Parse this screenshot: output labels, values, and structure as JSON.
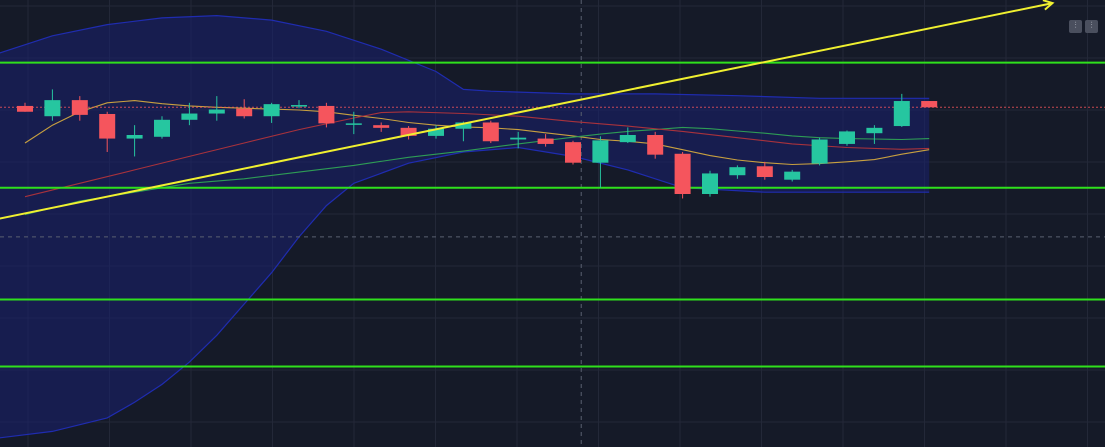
{
  "controls": {
    "btn_a_glyph": "⫶",
    "btn_b_glyph": "⫶"
  },
  "colors": {
    "background": "#151a28",
    "grid": "#232838",
    "up": "#26c6a0",
    "down": "#f5555d",
    "support_resistance": "#2fe01c",
    "trendline": "#f0f030",
    "band_fill": "#1a2070",
    "band_edge": "#1f2cb0",
    "ma_fast": "#c8a040",
    "ma_mid": "#2e9c55",
    "ma_slow": "#a8323c",
    "last_price": "#f5555d",
    "crosshair": "#5a6070"
  },
  "chart_data": {
    "type": "candlestick",
    "title": "",
    "xlabel": "",
    "ylabel": "",
    "x_range": [
      0,
      46
    ],
    "ylim": [
      0,
      100
    ],
    "grid": true,
    "candles": [
      {
        "x": 0,
        "o": 76.3,
        "h": 77.0,
        "l": 75.0,
        "c": 75.0
      },
      {
        "x": 1,
        "o": 74.0,
        "h": 80.0,
        "l": 73.0,
        "c": 77.6
      },
      {
        "x": 2,
        "o": 77.6,
        "h": 78.5,
        "l": 73.0,
        "c": 74.3
      },
      {
        "x": 3,
        "o": 74.5,
        "h": 75.0,
        "l": 66.0,
        "c": 69.0
      },
      {
        "x": 4,
        "o": 69.0,
        "h": 72.0,
        "l": 65.0,
        "c": 69.8
      },
      {
        "x": 5,
        "o": 69.4,
        "h": 74.0,
        "l": 69.0,
        "c": 73.2
      },
      {
        "x": 6,
        "o": 73.2,
        "h": 77.0,
        "l": 72.0,
        "c": 74.6
      },
      {
        "x": 7,
        "o": 74.6,
        "h": 78.5,
        "l": 73.0,
        "c": 75.5
      },
      {
        "x": 8,
        "o": 75.7,
        "h": 77.8,
        "l": 73.5,
        "c": 74.0
      },
      {
        "x": 9,
        "o": 74.0,
        "h": 77.0,
        "l": 72.5,
        "c": 76.7
      },
      {
        "x": 10,
        "o": 76.5,
        "h": 77.6,
        "l": 75.8,
        "c": 76.5
      },
      {
        "x": 11,
        "o": 76.3,
        "h": 77.0,
        "l": 71.5,
        "c": 72.4
      },
      {
        "x": 12,
        "o": 72.4,
        "h": 75.0,
        "l": 70.0,
        "c": 72.4
      },
      {
        "x": 13,
        "o": 72.0,
        "h": 72.6,
        "l": 70.5,
        "c": 71.4
      },
      {
        "x": 14,
        "o": 71.4,
        "h": 71.8,
        "l": 68.8,
        "c": 69.6
      },
      {
        "x": 15,
        "o": 69.6,
        "h": 72.0,
        "l": 69.0,
        "c": 71.2
      },
      {
        "x": 16,
        "o": 71.2,
        "h": 72.8,
        "l": 68.4,
        "c": 72.6
      },
      {
        "x": 17,
        "o": 72.6,
        "h": 73.0,
        "l": 68.0,
        "c": 68.4
      },
      {
        "x": 18,
        "o": 68.8,
        "h": 70.5,
        "l": 66.8,
        "c": 69.2
      },
      {
        "x": 19,
        "o": 69.0,
        "h": 70.0,
        "l": 67.2,
        "c": 67.8
      },
      {
        "x": 20,
        "o": 68.2,
        "h": 68.5,
        "l": 63.2,
        "c": 63.6
      },
      {
        "x": 21,
        "o": 63.6,
        "h": 69.5,
        "l": 58.0,
        "c": 68.6
      },
      {
        "x": 22,
        "o": 68.2,
        "h": 71.5,
        "l": 68.0,
        "c": 69.8
      },
      {
        "x": 23,
        "o": 69.8,
        "h": 70.5,
        "l": 64.5,
        "c": 65.4
      },
      {
        "x": 24,
        "o": 65.6,
        "h": 66.0,
        "l": 55.6,
        "c": 56.6
      },
      {
        "x": 25,
        "o": 56.6,
        "h": 61.8,
        "l": 56.0,
        "c": 61.2
      },
      {
        "x": 26,
        "o": 60.8,
        "h": 63.0,
        "l": 60.0,
        "c": 62.6
      },
      {
        "x": 27,
        "o": 62.8,
        "h": 63.8,
        "l": 59.8,
        "c": 60.4
      },
      {
        "x": 28,
        "o": 59.8,
        "h": 62.0,
        "l": 59.4,
        "c": 61.6
      },
      {
        "x": 29,
        "o": 63.4,
        "h": 69.2,
        "l": 63.0,
        "c": 68.8
      },
      {
        "x": 30,
        "o": 67.8,
        "h": 70.8,
        "l": 67.4,
        "c": 70.6
      },
      {
        "x": 31,
        "o": 70.2,
        "h": 72.0,
        "l": 67.8,
        "c": 71.4
      },
      {
        "x": 32,
        "o": 71.8,
        "h": 79.0,
        "l": 71.6,
        "c": 77.4
      },
      {
        "x": 33,
        "o": 77.4,
        "h": 77.4,
        "l": 76.0,
        "c": 76.0
      }
    ],
    "moving_averages": [
      {
        "id": "ma-fast",
        "points": [
          [
            0,
            68
          ],
          [
            1,
            72
          ],
          [
            2,
            75
          ],
          [
            3,
            77
          ],
          [
            4,
            77.5
          ],
          [
            5,
            76.8
          ],
          [
            6,
            76.3
          ],
          [
            7,
            76
          ],
          [
            8,
            75.8
          ],
          [
            9,
            75.6
          ],
          [
            10,
            75.4
          ],
          [
            11,
            75
          ],
          [
            12,
            74.2
          ],
          [
            13,
            73.5
          ],
          [
            14,
            72.6
          ],
          [
            15,
            72
          ],
          [
            16,
            71.6
          ],
          [
            17,
            71.4
          ],
          [
            18,
            71
          ],
          [
            19,
            70.3
          ],
          [
            20,
            69.6
          ],
          [
            21,
            68.8
          ],
          [
            22,
            68.4
          ],
          [
            23,
            67.8
          ],
          [
            24,
            66.5
          ],
          [
            25,
            65.2
          ],
          [
            26,
            64.2
          ],
          [
            27,
            63.6
          ],
          [
            28,
            63.2
          ],
          [
            29,
            63.4
          ],
          [
            30,
            63.8
          ],
          [
            31,
            64.3
          ],
          [
            32,
            65.5
          ],
          [
            33,
            66.5
          ]
        ]
      },
      {
        "id": "ma-mid",
        "points": [
          [
            0,
            52
          ],
          [
            2,
            55
          ],
          [
            4,
            57
          ],
          [
            6,
            59
          ],
          [
            8,
            60
          ],
          [
            10,
            61.5
          ],
          [
            12,
            63
          ],
          [
            14,
            64.8
          ],
          [
            16,
            66.2
          ],
          [
            18,
            67.8
          ],
          [
            20,
            69.3
          ],
          [
            21,
            70
          ],
          [
            22,
            70.6
          ],
          [
            23,
            71
          ],
          [
            24,
            71.5
          ],
          [
            25,
            71.2
          ],
          [
            26,
            70.7
          ],
          [
            27,
            70.2
          ],
          [
            28,
            69.6
          ],
          [
            29,
            69.2
          ],
          [
            30,
            69
          ],
          [
            31,
            68.9
          ],
          [
            32,
            68.8
          ],
          [
            33,
            69
          ]
        ]
      },
      {
        "id": "ma-slow",
        "points": [
          [
            0,
            56
          ],
          [
            2,
            59
          ],
          [
            4,
            62
          ],
          [
            6,
            65
          ],
          [
            8,
            68
          ],
          [
            10,
            71
          ],
          [
            12,
            73.6
          ],
          [
            13,
            74.8
          ],
          [
            14,
            75
          ],
          [
            16,
            74.6
          ],
          [
            18,
            74
          ],
          [
            20,
            72.8
          ],
          [
            22,
            71.8
          ],
          [
            24,
            70.6
          ],
          [
            26,
            69.2
          ],
          [
            28,
            67.8
          ],
          [
            30,
            67
          ],
          [
            32,
            66.6
          ],
          [
            33,
            66.8
          ]
        ]
      }
    ],
    "band": {
      "upper": [
        [
          -1,
          88
        ],
        [
          1,
          92
        ],
        [
          3,
          94.5
        ],
        [
          5,
          96
        ],
        [
          7,
          96.5
        ],
        [
          9,
          95.5
        ],
        [
          11,
          93
        ],
        [
          13,
          89
        ],
        [
          15,
          84
        ],
        [
          16,
          80
        ],
        [
          17,
          79.6
        ],
        [
          20,
          79
        ],
        [
          23,
          79
        ],
        [
          26,
          78.6
        ],
        [
          29,
          78
        ],
        [
          32,
          78
        ],
        [
          33,
          78
        ]
      ],
      "lower": [
        [
          33,
          57
        ],
        [
          30,
          57
        ],
        [
          27,
          57
        ],
        [
          24,
          58
        ],
        [
          22,
          62
        ],
        [
          20,
          65
        ],
        [
          18,
          67
        ],
        [
          16,
          66
        ],
        [
          14,
          63.5
        ],
        [
          12,
          59
        ],
        [
          11,
          54
        ],
        [
          10,
          47
        ],
        [
          9,
          39
        ],
        [
          8,
          32
        ],
        [
          7,
          25
        ],
        [
          6,
          19
        ],
        [
          5,
          14
        ],
        [
          4,
          10
        ],
        [
          3,
          6.5
        ],
        [
          1,
          3.5
        ],
        [
          -1,
          2
        ]
      ]
    },
    "horizontal_levels": [
      86.0,
      58.0,
      33.0,
      18.0
    ],
    "trendline": {
      "from": [
        -1,
        51
      ],
      "to": [
        37.5,
        99.3
      ]
    },
    "last_price": 76.0,
    "crosshair": {
      "x": 20.3,
      "y": 47.0
    }
  }
}
